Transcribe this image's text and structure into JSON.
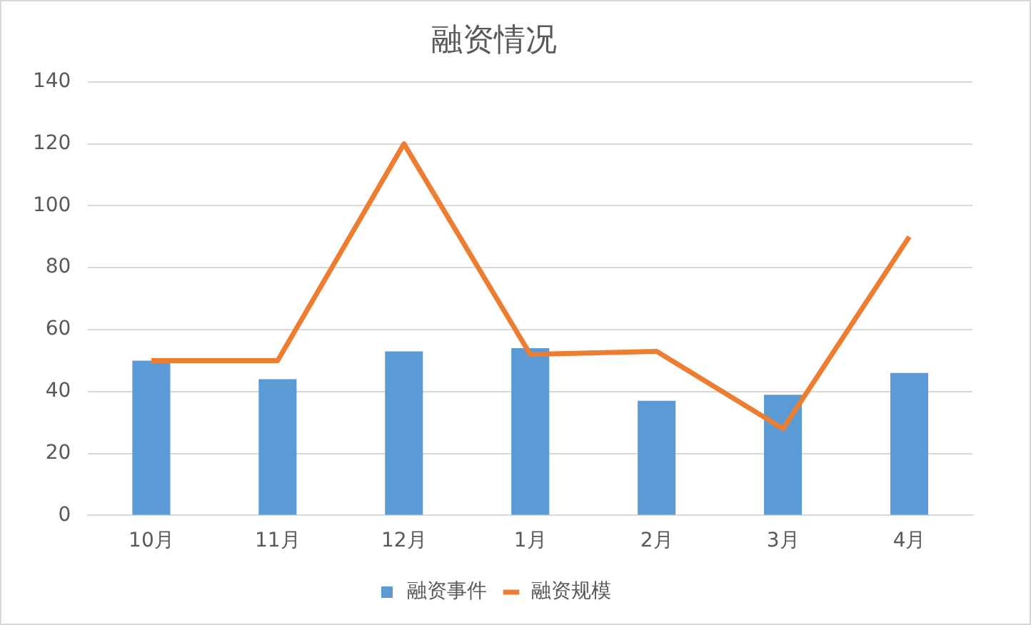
{
  "chart_data": {
    "type": "bar",
    "title": "融资情况",
    "categories": [
      "10月",
      "11月",
      "12月",
      "1月",
      "2月",
      "3月",
      "4月"
    ],
    "series": [
      {
        "name": "融资事件",
        "color": "#5b9bd5",
        "values": [
          50,
          44,
          53,
          54,
          37,
          39,
          46
        ]
      },
      {
        "name": "融资规模",
        "type": "line",
        "color": "#ed7d31",
        "values": [
          50,
          50,
          120,
          52,
          53,
          28,
          90
        ]
      }
    ],
    "ylim": [
      0,
      140
    ],
    "yticks": [
      0,
      20,
      40,
      60,
      80,
      100,
      120,
      140
    ],
    "grid": "y",
    "legend": "bottom"
  }
}
